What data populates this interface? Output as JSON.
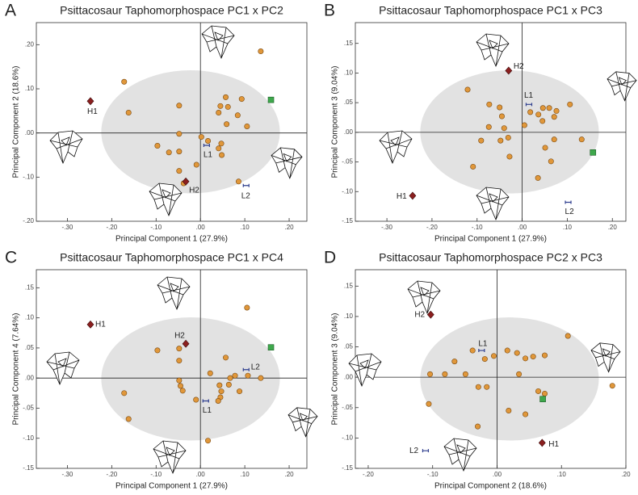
{
  "chart_data": [
    {
      "type": "scatter",
      "panel_label": "A",
      "title": "Psittacosaur Taphomorphospace PC1 x PC2",
      "x_label": "Principal Component 1 (27.9%)",
      "y_label": "Principal Component 2 (18.6%)",
      "xlim": [
        -0.37,
        0.24
      ],
      "ylim": [
        -0.2,
        0.25
      ],
      "xticks": [
        {
          "value": -0.3,
          "label": "-.30"
        },
        {
          "value": -0.2,
          "label": "-.20"
        },
        {
          "value": -0.1,
          "label": "-.10"
        },
        {
          "value": 0,
          "label": ".00"
        },
        {
          "value": 0.1,
          "label": ".10"
        },
        {
          "value": 0.2,
          "label": ".20"
        }
      ],
      "yticks": [
        {
          "value": -0.2,
          "label": "-.20"
        },
        {
          "value": -0.1,
          "label": "-.10"
        },
        {
          "value": 0,
          "label": ".00"
        },
        {
          "value": 0.1,
          "label": ".10"
        },
        {
          "value": 0.2,
          "label": ".20"
        }
      ],
      "series": [
        {
          "marker": "circle",
          "color": "#e0973a",
          "x": [
            -0.172,
            -0.162,
            -0.048,
            -0.048,
            -0.097,
            -0.071,
            -0.048,
            -0.009,
            -0.048,
            -0.038,
            0.002,
            0.017,
            0.047,
            0.041,
            0.048,
            0.059,
            0.041,
            0.045,
            0.057,
            0.062,
            0.084,
            0.093,
            0.105,
            0.136,
            0.086
          ],
          "values": [
            0.116,
            0.046,
            0.062,
            -0.002,
            -0.029,
            -0.044,
            -0.042,
            -0.072,
            -0.086,
            -0.114,
            -0.009,
            -0.018,
            -0.024,
            -0.035,
            -0.05,
            0.02,
            0.046,
            0.061,
            0.081,
            0.059,
            0.04,
            0.077,
            0.015,
            0.185,
            -0.11
          ]
        },
        {
          "marker": "square",
          "color": "#3ea84c",
          "x": [
            0.159
          ],
          "values": [
            0.075
          ]
        }
      ],
      "annotations": [
        {
          "label": "H1",
          "marker": "diamond",
          "color": "#8b1f1f",
          "x": -0.248,
          "y": 0.072
        },
        {
          "label": "H2",
          "marker": "diamond",
          "color": "#8b1f1f",
          "x": -0.033,
          "y": -0.11
        },
        {
          "label": "L1",
          "marker": "bar",
          "color": "#2f3f8f",
          "x": 0.014,
          "y": -0.028
        },
        {
          "label": "L2",
          "marker": "bar",
          "color": "#2f3f8f",
          "x": 0.103,
          "y": -0.119
        }
      ]
    },
    {
      "type": "scatter",
      "panel_label": "B",
      "title": "Psittacosaur Taphomorphospace PC1 x PC3",
      "x_label": "Principal Component 1 (27.9%)",
      "y_label": "Principal Component 3 (9.04%)",
      "xlim": [
        -0.37,
        0.23
      ],
      "ylim": [
        -0.15,
        0.185
      ],
      "xticks": [
        {
          "value": -0.3,
          "label": "-.30"
        },
        {
          "value": -0.2,
          "label": "-.20"
        },
        {
          "value": -0.1,
          "label": "-.10"
        },
        {
          "value": 0,
          "label": ".00"
        },
        {
          "value": 0.1,
          "label": ".10"
        },
        {
          "value": 0.2,
          "label": ".20"
        }
      ],
      "yticks": [
        {
          "value": -0.15,
          "label": "-.15"
        },
        {
          "value": -0.1,
          "label": "-.10"
        },
        {
          "value": -0.05,
          "label": "-.05"
        },
        {
          "value": 0,
          "label": ".00"
        },
        {
          "value": 0.05,
          "label": ".05"
        },
        {
          "value": 0.1,
          "label": ".10"
        },
        {
          "value": 0.15,
          "label": ".15"
        }
      ],
      "series": [
        {
          "marker": "circle",
          "color": "#e0973a",
          "x": [
            -0.121,
            -0.073,
            -0.05,
            -0.045,
            -0.074,
            -0.04,
            -0.109,
            -0.091,
            -0.048,
            -0.031,
            -0.028,
            0.005,
            0.018,
            0.036,
            0.046,
            0.045,
            0.06,
            0.071,
            0.076,
            0.106,
            0.051,
            0.064,
            0.071,
            0.035,
            0.132
          ],
          "values": [
            0.072,
            0.047,
            0.042,
            0.027,
            0.009,
            0.007,
            -0.058,
            -0.014,
            -0.014,
            -0.009,
            -0.041,
            0.012,
            0.034,
            0.03,
            0.041,
            0.019,
            0.041,
            0.026,
            0.036,
            0.047,
            -0.026,
            -0.049,
            -0.012,
            -0.077,
            -0.012
          ]
        },
        {
          "marker": "square",
          "color": "#3ea84c",
          "x": [
            0.157
          ],
          "values": [
            -0.034
          ]
        }
      ],
      "annotations": [
        {
          "label": "H1",
          "marker": "diamond",
          "color": "#8b1f1f",
          "x": -0.243,
          "y": -0.107
        },
        {
          "label": "H2",
          "marker": "diamond",
          "color": "#8b1f1f",
          "x": -0.03,
          "y": 0.104
        },
        {
          "label": "L1",
          "marker": "bar",
          "color": "#2f3f8f",
          "x": 0.015,
          "y": 0.047
        },
        {
          "label": "L2",
          "marker": "bar",
          "color": "#2f3f8f",
          "x": 0.102,
          "y": -0.118
        }
      ]
    },
    {
      "type": "scatter",
      "panel_label": "C",
      "title": "Psittacosaur Taphomorphospace PC1 x PC4",
      "x_label": "Principal Component 1 (27.9%)",
      "y_label": "Principal Component 4 (7.64%)",
      "xlim": [
        -0.37,
        0.24
      ],
      "ylim": [
        -0.15,
        0.18
      ],
      "xticks": [
        {
          "value": -0.3,
          "label": "-.30"
        },
        {
          "value": -0.2,
          "label": "-.20"
        },
        {
          "value": -0.1,
          "label": "-.10"
        },
        {
          "value": 0,
          "label": ".00"
        },
        {
          "value": 0.1,
          "label": ".10"
        },
        {
          "value": 0.2,
          "label": ".20"
        }
      ],
      "yticks": [
        {
          "value": -0.15,
          "label": "-.15"
        },
        {
          "value": -0.1,
          "label": "-.10"
        },
        {
          "value": -0.05,
          "label": "-.05"
        },
        {
          "value": 0,
          "label": ".00"
        },
        {
          "value": 0.05,
          "label": ".05"
        },
        {
          "value": 0.1,
          "label": ".10"
        },
        {
          "value": 0.15,
          "label": ".15"
        }
      ],
      "series": [
        {
          "marker": "circle",
          "color": "#e0973a",
          "x": [
            -0.172,
            -0.162,
            -0.048,
            -0.048,
            -0.048,
            -0.045,
            -0.04,
            -0.097,
            -0.01,
            0.017,
            0.022,
            0.043,
            0.047,
            0.045,
            0.04,
            0.057,
            0.064,
            0.067,
            0.078,
            0.088,
            0.107,
            0.105,
            0.136
          ],
          "values": [
            -0.025,
            -0.068,
            0.049,
            0.029,
            -0.004,
            -0.013,
            -0.021,
            0.046,
            -0.036,
            -0.104,
            0.008,
            -0.012,
            -0.022,
            -0.032,
            -0.038,
            0.034,
            -0.011,
            0.0,
            0.004,
            -0.022,
            0.004,
            0.117,
            0.0
          ]
        },
        {
          "marker": "square",
          "color": "#3ea84c",
          "x": [
            0.159
          ],
          "values": [
            0.051
          ]
        }
      ],
      "annotations": [
        {
          "label": "H1",
          "marker": "diamond",
          "color": "#8b1f1f",
          "x": -0.248,
          "y": 0.089
        },
        {
          "label": "H2",
          "marker": "diamond",
          "color": "#8b1f1f",
          "x": -0.033,
          "y": 0.057
        },
        {
          "label": "L1",
          "marker": "bar",
          "color": "#2f3f8f",
          "x": 0.012,
          "y": -0.038
        },
        {
          "label": "L2",
          "marker": "bar",
          "color": "#2f3f8f",
          "x": 0.103,
          "y": 0.014
        }
      ]
    },
    {
      "type": "scatter",
      "panel_label": "D",
      "title": "Psittacosaur Taphomorphospace PC2 x PC3",
      "x_label": "Principal Component 2 (18.6%)",
      "y_label": "Principal Component 3 (9.04%)",
      "xlim": [
        -0.22,
        0.2
      ],
      "ylim": [
        -0.15,
        0.177
      ],
      "xticks": [
        {
          "value": -0.2,
          "label": "-.20"
        },
        {
          "value": -0.1,
          "label": "-.10"
        },
        {
          "value": 0,
          "label": ".00"
        },
        {
          "value": 0.1,
          "label": ".10"
        },
        {
          "value": 0.2,
          "label": ".20"
        }
      ],
      "yticks": [
        {
          "value": -0.15,
          "label": "-.15"
        },
        {
          "value": -0.1,
          "label": "-.10"
        },
        {
          "value": -0.05,
          "label": "-.05"
        },
        {
          "value": 0,
          "label": ".00"
        },
        {
          "value": 0.05,
          "label": ".05"
        },
        {
          "value": 0.1,
          "label": ".10"
        },
        {
          "value": 0.15,
          "label": ".15"
        }
      ],
      "series": [
        {
          "marker": "circle",
          "color": "#e0973a",
          "x": [
            -0.104,
            -0.081,
            -0.049,
            -0.066,
            -0.038,
            -0.019,
            -0.005,
            0.016,
            0.031,
            0.044,
            0.056,
            0.074,
            0.034,
            -0.029,
            -0.016,
            -0.106,
            -0.03,
            0.018,
            0.044,
            0.064,
            0.074,
            0.11,
            0.179
          ],
          "values": [
            0.005,
            0.005,
            0.005,
            0.026,
            0.044,
            0.03,
            0.035,
            0.044,
            0.04,
            0.031,
            0.034,
            0.036,
            0.005,
            -0.016,
            -0.016,
            -0.044,
            -0.081,
            -0.055,
            -0.061,
            -0.023,
            -0.027,
            0.068,
            -0.014
          ]
        },
        {
          "marker": "square",
          "color": "#3ea84c",
          "x": [
            0.071
          ],
          "values": [
            -0.036
          ]
        }
      ],
      "annotations": [
        {
          "label": "H1",
          "marker": "diamond",
          "color": "#8b1f1f",
          "x": 0.07,
          "y": -0.108
        },
        {
          "label": "H2",
          "marker": "diamond",
          "color": "#8b1f1f",
          "x": -0.103,
          "y": 0.103
        },
        {
          "label": "L1",
          "marker": "bar",
          "color": "#2f3f8f",
          "x": -0.024,
          "y": 0.044
        },
        {
          "label": "L2",
          "marker": "bar",
          "color": "#2f3f8f",
          "x": -0.111,
          "y": -0.121
        }
      ]
    }
  ]
}
